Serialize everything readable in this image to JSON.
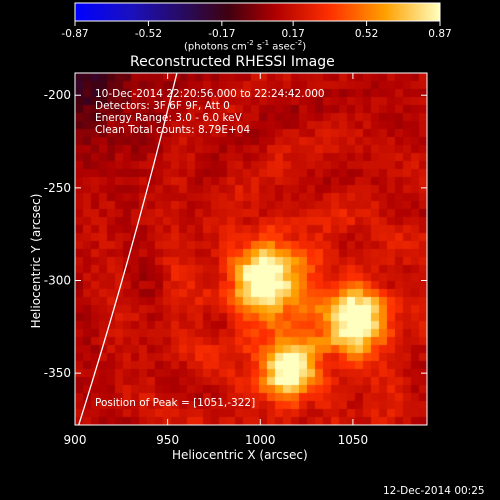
{
  "chart_data": {
    "type": "heatmap",
    "title": "Reconstructed RHESSI Image",
    "colorbar": {
      "ticks": [
        "-0.87",
        "-0.52",
        "-0.17",
        "0.17",
        "0.52",
        "0.87"
      ],
      "range": [
        -0.87,
        0.87
      ],
      "unit_main": "(photons cm",
      "unit_sup1": "-2",
      "unit_mid": " s",
      "unit_sup2": "-1",
      "unit_tail": " asec",
      "unit_sup3": "-2",
      "unit_close": ")"
    },
    "xlabel": "Heliocentric X (arcsec)",
    "ylabel": "Heliocentric Y (arcsec)",
    "xlim": [
      900,
      1090
    ],
    "ylim": [
      -378,
      -188
    ],
    "xticks": [
      "900",
      "950",
      "1000",
      "1050"
    ],
    "yticks": [
      "-200",
      "-250",
      "-300",
      "-350"
    ],
    "sources": [
      {
        "x": 1004,
        "y": -300,
        "peak": 0.8,
        "sigma": 13
      },
      {
        "x": 1051,
        "y": -322,
        "peak": 0.87,
        "sigma": 11
      },
      {
        "x": 1015,
        "y": -347,
        "peak": 0.78,
        "sigma": 10
      }
    ],
    "limb": {
      "x_start": 902,
      "y_start": -378,
      "x_end": 955,
      "y_end": -188
    },
    "annotations": {
      "time": "10-Dec-2014 22:20:56.000 to 22:24:42.000",
      "detectors": "Detectors: 3F 6F 9F, Att 0",
      "energy": "Energy Range: 3.0 - 6.0 keV",
      "clean": "Clean     Total counts: 8.79E+04",
      "peak": "Position of Peak = [1051,-322]"
    }
  },
  "footer": {
    "timestamp": "12-Dec-2014 00:25"
  }
}
